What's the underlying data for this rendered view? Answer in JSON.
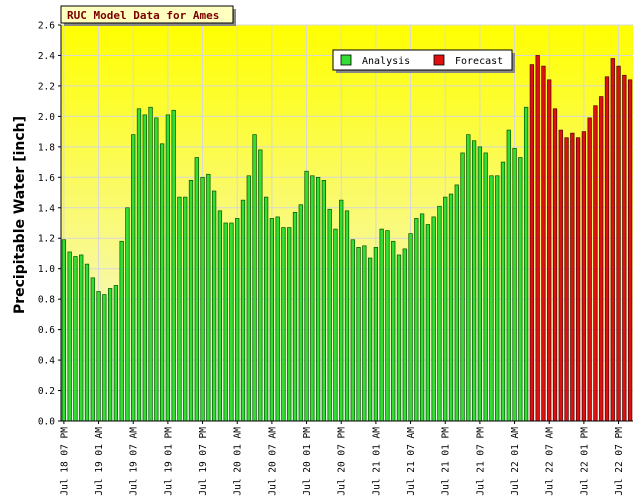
{
  "chart_data": {
    "type": "bar",
    "title": "RUC Model Data for Ames",
    "ylabel": "Precipitable Water [inch]",
    "xlabel": "",
    "ylim": [
      0,
      2.6
    ],
    "yticks": [
      0.0,
      0.2,
      0.4,
      0.6,
      0.8,
      1.0,
      1.2,
      1.4,
      1.6,
      1.8,
      2.0,
      2.2,
      2.4,
      2.6
    ],
    "ytick_labels": [
      "0.0",
      "0.2",
      "0.4",
      "0.6",
      "0.8",
      "1.0",
      "1.2",
      "1.4",
      "1.6",
      "1.8",
      "2.0",
      "2.2",
      "2.4",
      "2.6"
    ],
    "xtick_labels": [
      {
        "index": 0,
        "label": "Jul 18 07 PM"
      },
      {
        "index": 6,
        "label": "Jul 19 01 AM"
      },
      {
        "index": 12,
        "label": "Jul 19 07 AM"
      },
      {
        "index": 18,
        "label": "Jul 19 01 PM"
      },
      {
        "index": 24,
        "label": "Jul 19 07 PM"
      },
      {
        "index": 30,
        "label": "Jul 20 01 AM"
      },
      {
        "index": 36,
        "label": "Jul 20 07 AM"
      },
      {
        "index": 42,
        "label": "Jul 20 01 PM"
      },
      {
        "index": 48,
        "label": "Jul 20 07 PM"
      },
      {
        "index": 54,
        "label": "Jul 21 01 AM"
      },
      {
        "index": 60,
        "label": "Jul 21 07 AM"
      },
      {
        "index": 66,
        "label": "Jul 21 01 PM"
      },
      {
        "index": 72,
        "label": "Jul 21 07 PM"
      },
      {
        "index": 78,
        "label": "Jul 22 01 AM"
      },
      {
        "index": 84,
        "label": "Jul 22 07 AM"
      },
      {
        "index": 90,
        "label": "Jul 22 01 PM"
      },
      {
        "index": 96,
        "label": "Jul 22 07 PM"
      }
    ],
    "legend": {
      "placement": "top-center"
    },
    "grid": true,
    "colors": {
      "plot_top": "#ffff00",
      "plot_bottom": "#f4f4f4",
      "grid": "#d8d8d8",
      "legend_bg": "#ffffff",
      "title_bg": "#ffffc0"
    },
    "series": [
      {
        "name": "Analysis",
        "color": "#33dd33",
        "edge": "#005500",
        "start_index": 0,
        "values": [
          1.19,
          1.11,
          1.08,
          1.09,
          1.03,
          0.94,
          0.85,
          0.83,
          0.87,
          0.89,
          1.18,
          1.4,
          1.88,
          2.05,
          2.01,
          2.06,
          1.99,
          1.82,
          2.01,
          2.04,
          1.47,
          1.47,
          1.58,
          1.73,
          1.6,
          1.62,
          1.51,
          1.38,
          1.3,
          1.3,
          1.33,
          1.45,
          1.61,
          1.88,
          1.78,
          1.47,
          1.33,
          1.34,
          1.27,
          1.27,
          1.37,
          1.42,
          1.64,
          1.61,
          1.6,
          1.58,
          1.39,
          1.26,
          1.45,
          1.38,
          1.19,
          1.14,
          1.15,
          1.07,
          1.14,
          1.26,
          1.25,
          1.18,
          1.09,
          1.13,
          1.23,
          1.33,
          1.36,
          1.29,
          1.34,
          1.41,
          1.47,
          1.49,
          1.55,
          1.76,
          1.88,
          1.84,
          1.8,
          1.76,
          1.61,
          1.61,
          1.7,
          1.91,
          1.79,
          1.73,
          2.06
        ]
      },
      {
        "name": "Forecast",
        "color": "#dd1111",
        "edge": "#550000",
        "start_index": 81,
        "values": [
          2.34,
          2.4,
          2.33,
          2.24,
          2.05,
          1.91,
          1.86,
          1.89,
          1.86,
          1.9,
          1.99,
          2.07,
          2.13,
          2.26,
          2.38,
          2.33,
          2.27,
          2.24
        ]
      }
    ]
  }
}
